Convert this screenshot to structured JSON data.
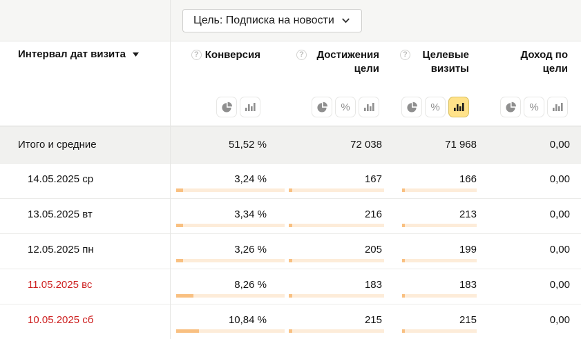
{
  "goal_selector": {
    "label": "Цель: Подписка на новости",
    "icon": "chevron-down-icon"
  },
  "colors": {
    "bar_fill": "#f9c081",
    "bar_track": "#fdecd9",
    "active_toggle_bg": "#ffe289",
    "weekend_date_red": "#cd1f1f",
    "topbar_bg": "#f6f6f4",
    "totals_row_bg": "#f1f1ef"
  },
  "table": {
    "date_header": {
      "label": "Интервал дат визита",
      "sort_icon": "sort-desc-triangle"
    },
    "columns": [
      {
        "id": "conversion",
        "label": "Конверсия",
        "help_icon": true,
        "help_glyph": "?",
        "toggles": [
          "pie-chart",
          "bar-chart"
        ],
        "active_toggle": null
      },
      {
        "id": "goal-reaches",
        "label": "Достижения цели",
        "help_icon": true,
        "help_glyph": "?",
        "toggles": [
          "pie-chart",
          "percent",
          "bar-chart"
        ],
        "active_toggle": null
      },
      {
        "id": "goal-visits",
        "label": "Целевые визиты",
        "help_icon": true,
        "help_glyph": "?",
        "toggles": [
          "pie-chart",
          "percent",
          "bar-chart"
        ],
        "active_toggle": "bar-chart"
      },
      {
        "id": "goal-revenue",
        "label": "Доход по цели",
        "help_icon": false,
        "toggles": [
          "pie-chart",
          "percent",
          "bar-chart"
        ],
        "active_toggle": null
      }
    ],
    "totals": {
      "label": "Итого и средние",
      "conversion": "51,52 %",
      "conversion_num": 51.52,
      "reaches": "72 038",
      "reaches_num": 72038,
      "visits": "71 968",
      "visits_num": 71968,
      "revenue": "0,00"
    },
    "rows": [
      {
        "label": "14.05.2025 ср",
        "weekend": false,
        "conversion": "3,24 %",
        "conversion_num": 3.24,
        "reaches": "167",
        "reaches_num": 167,
        "visits": "166",
        "visits_num": 166,
        "revenue": "0,00"
      },
      {
        "label": "13.05.2025 вт",
        "weekend": false,
        "conversion": "3,34 %",
        "conversion_num": 3.34,
        "reaches": "216",
        "reaches_num": 216,
        "visits": "213",
        "visits_num": 213,
        "revenue": "0,00"
      },
      {
        "label": "12.05.2025 пн",
        "weekend": false,
        "conversion": "3,26 %",
        "conversion_num": 3.26,
        "reaches": "205",
        "reaches_num": 205,
        "visits": "199",
        "visits_num": 199,
        "revenue": "0,00"
      },
      {
        "label": "11.05.2025 вс",
        "weekend": true,
        "conversion": "8,26 %",
        "conversion_num": 8.26,
        "reaches": "183",
        "reaches_num": 183,
        "visits": "183",
        "visits_num": 183,
        "revenue": "0,00"
      },
      {
        "label": "10.05.2025 сб",
        "weekend": true,
        "conversion": "10,84 %",
        "conversion_num": 10.84,
        "reaches": "215",
        "reaches_num": 215,
        "visits": "215",
        "visits_num": 215,
        "revenue": "0,00"
      }
    ]
  }
}
